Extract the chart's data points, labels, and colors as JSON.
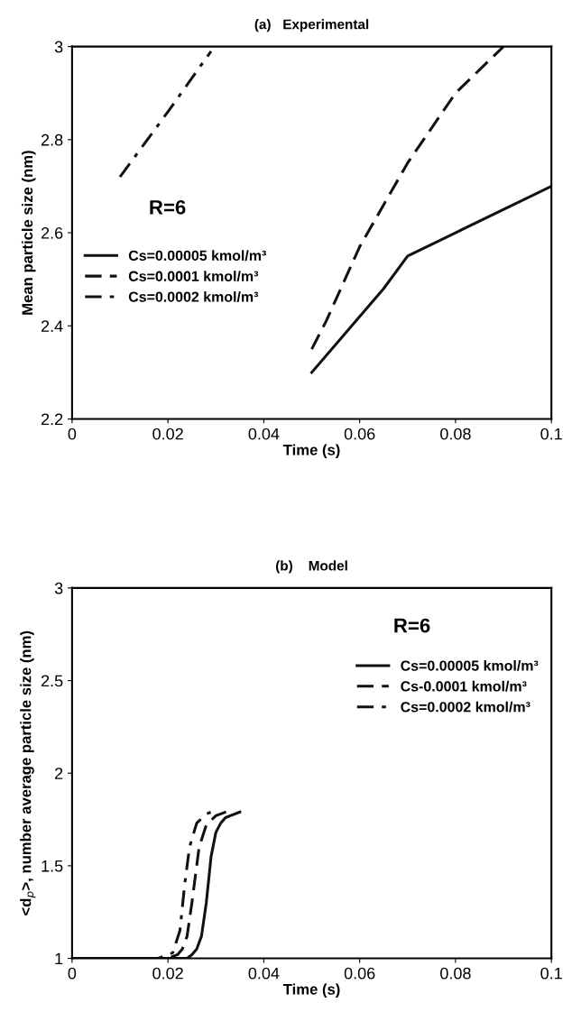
{
  "chart_data": [
    {
      "type": "line",
      "title": "(a)   Experimental",
      "xlabel": "Time (s)",
      "ylabel": "Mean particle size (nm)",
      "xlim": [
        0,
        0.1
      ],
      "ylim": [
        2.2,
        3
      ],
      "xticks": [
        0,
        0.02,
        0.04,
        0.06,
        0.08,
        0.1
      ],
      "yticks": [
        2.2,
        2.4,
        2.6,
        2.8,
        3
      ],
      "legend": "center left",
      "grid": false,
      "annotations": [
        "R=6"
      ],
      "series": [
        {
          "name": "Cs=0.00005 kmol/m³",
          "color": "#111111",
          "line_style": "solid",
          "x": [
            0.05,
            0.065,
            0.07,
            0.08,
            0.1
          ],
          "values": [
            2.3,
            2.48,
            2.55,
            2.6,
            2.7
          ]
        },
        {
          "name": "Cs=0.0001 kmol/m³",
          "color": "#111111",
          "line_style": "dashed",
          "x": [
            0.05,
            0.053,
            0.06,
            0.07,
            0.08,
            0.09
          ],
          "values": [
            2.35,
            2.41,
            2.57,
            2.75,
            2.9,
            3.0
          ]
        },
        {
          "name": "Cs=0.0002 kmol/m³",
          "color": "#111111",
          "line_style": "dashdot",
          "x": [
            0.01,
            0.02,
            0.029
          ],
          "values": [
            2.72,
            2.86,
            2.99
          ]
        }
      ]
    },
    {
      "type": "line",
      "title": "(b)    Model",
      "xlabel": "Time (s)",
      "ylabel": "<d$_{p}$>, number average particle size (nm)",
      "xlim": [
        0,
        0.1
      ],
      "ylim": [
        1,
        3
      ],
      "xticks": [
        0,
        0.02,
        0.04,
        0.06,
        0.08,
        0.1
      ],
      "yticks": [
        1,
        1.5,
        2,
        2.5,
        3
      ],
      "legend": "upper right",
      "grid": false,
      "annotations": [
        "R=6"
      ],
      "series": [
        {
          "name": "Cs=0.00005 kmol/m³",
          "color": "#111111",
          "line_style": "solid",
          "x": [
            0,
            0.024,
            0.025,
            0.026,
            0.027,
            0.028,
            0.029,
            0.03,
            0.031,
            0.032,
            0.035
          ],
          "values": [
            1,
            1,
            1.02,
            1.05,
            1.12,
            1.3,
            1.55,
            1.68,
            1.73,
            1.76,
            1.79
          ]
        },
        {
          "name": "Cs-0.0001 kmol/m³",
          "color": "#111111",
          "line_style": "dashed",
          "x": [
            0,
            0.02,
            0.022,
            0.023,
            0.024,
            0.025,
            0.0265,
            0.028,
            0.03,
            0.033
          ],
          "values": [
            1,
            1,
            1.02,
            1.05,
            1.12,
            1.3,
            1.6,
            1.72,
            1.77,
            1.8
          ]
        },
        {
          "name": "Cs=0.0002 kmol/m³",
          "color": "#111111",
          "line_style": "dashdot",
          "x": [
            0,
            0.018,
            0.021,
            0.0225,
            0.0235,
            0.0245,
            0.026,
            0.028,
            0.03
          ],
          "values": [
            1,
            1,
            1.03,
            1.15,
            1.4,
            1.6,
            1.73,
            1.78,
            1.8
          ]
        }
      ]
    }
  ]
}
